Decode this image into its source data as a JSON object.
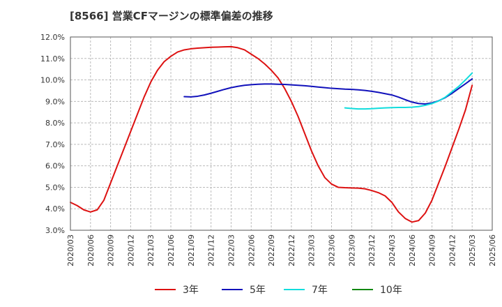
{
  "chart_data": {
    "type": "line",
    "title": "[8566]  営業CFマージンの標準偏差の推移",
    "xlabel": "",
    "ylabel": "",
    "ylim": [
      3.0,
      12.0
    ],
    "y_ticks": [
      "3.0%",
      "4.0%",
      "5.0%",
      "6.0%",
      "7.0%",
      "8.0%",
      "9.0%",
      "10.0%",
      "11.0%",
      "12.0%"
    ],
    "x_ticks": [
      "2020/03",
      "2020/06",
      "2020/09",
      "2020/12",
      "2021/03",
      "2021/06",
      "2021/09",
      "2021/12",
      "2022/03",
      "2022/06",
      "2022/09",
      "2022/12",
      "2023/03",
      "2023/06",
      "2023/09",
      "2023/12",
      "2024/03",
      "2024/06",
      "2024/09",
      "2024/12",
      "2025/03",
      "2025/06"
    ],
    "grid": true,
    "legend_position": "bottom",
    "series": [
      {
        "name": "3年",
        "color": "#dd1111",
        "points": [
          [
            "2020/03",
            4.3
          ],
          [
            "2020/04",
            4.15
          ],
          [
            "2020/05",
            3.95
          ],
          [
            "2020/06",
            3.85
          ],
          [
            "2020/07",
            3.95
          ],
          [
            "2020/08",
            4.4
          ],
          [
            "2020/09",
            5.2
          ],
          [
            "2020/10",
            6.0
          ],
          [
            "2020/11",
            6.8
          ],
          [
            "2020/12",
            7.6
          ],
          [
            "2021/01",
            8.4
          ],
          [
            "2021/02",
            9.2
          ],
          [
            "2021/03",
            9.9
          ],
          [
            "2021/04",
            10.45
          ],
          [
            "2021/05",
            10.85
          ],
          [
            "2021/06",
            11.1
          ],
          [
            "2021/07",
            11.3
          ],
          [
            "2021/08",
            11.4
          ],
          [
            "2021/09",
            11.45
          ],
          [
            "2021/10",
            11.48
          ],
          [
            "2021/11",
            11.5
          ],
          [
            "2021/12",
            11.52
          ],
          [
            "2022/01",
            11.53
          ],
          [
            "2022/02",
            11.54
          ],
          [
            "2022/03",
            11.55
          ],
          [
            "2022/04",
            11.5
          ],
          [
            "2022/05",
            11.4
          ],
          [
            "2022/06",
            11.2
          ],
          [
            "2022/07",
            11.0
          ],
          [
            "2022/08",
            10.75
          ],
          [
            "2022/09",
            10.45
          ],
          [
            "2022/10",
            10.1
          ],
          [
            "2022/11",
            9.6
          ],
          [
            "2022/12",
            9.0
          ],
          [
            "2023/01",
            8.3
          ],
          [
            "2023/02",
            7.5
          ],
          [
            "2023/03",
            6.7
          ],
          [
            "2023/04",
            6.0
          ],
          [
            "2023/05",
            5.45
          ],
          [
            "2023/06",
            5.15
          ],
          [
            "2023/07",
            5.0
          ],
          [
            "2023/08",
            4.98
          ],
          [
            "2023/09",
            4.97
          ],
          [
            "2023/10",
            4.96
          ],
          [
            "2023/11",
            4.93
          ],
          [
            "2023/12",
            4.85
          ],
          [
            "2024/01",
            4.75
          ],
          [
            "2024/02",
            4.6
          ],
          [
            "2024/03",
            4.3
          ],
          [
            "2024/04",
            3.85
          ],
          [
            "2024/05",
            3.55
          ],
          [
            "2024/06",
            3.38
          ],
          [
            "2024/07",
            3.45
          ],
          [
            "2024/08",
            3.8
          ],
          [
            "2024/09",
            4.4
          ],
          [
            "2024/10",
            5.2
          ],
          [
            "2024/11",
            6.0
          ],
          [
            "2024/12",
            6.85
          ],
          [
            "2025/01",
            7.7
          ],
          [
            "2025/02",
            8.6
          ],
          [
            "2025/03",
            9.75
          ]
        ]
      },
      {
        "name": "5年",
        "color": "#1111bb",
        "points": [
          [
            "2021/08",
            9.22
          ],
          [
            "2021/09",
            9.21
          ],
          [
            "2021/10",
            9.24
          ],
          [
            "2021/11",
            9.3
          ],
          [
            "2021/12",
            9.38
          ],
          [
            "2022/01",
            9.47
          ],
          [
            "2022/02",
            9.56
          ],
          [
            "2022/03",
            9.64
          ],
          [
            "2022/04",
            9.7
          ],
          [
            "2022/05",
            9.75
          ],
          [
            "2022/06",
            9.78
          ],
          [
            "2022/07",
            9.8
          ],
          [
            "2022/08",
            9.81
          ],
          [
            "2022/09",
            9.81
          ],
          [
            "2022/10",
            9.8
          ],
          [
            "2022/11",
            9.79
          ],
          [
            "2022/12",
            9.77
          ],
          [
            "2023/01",
            9.75
          ],
          [
            "2023/02",
            9.73
          ],
          [
            "2023/03",
            9.7
          ],
          [
            "2023/04",
            9.67
          ],
          [
            "2023/05",
            9.64
          ],
          [
            "2023/06",
            9.61
          ],
          [
            "2023/07",
            9.59
          ],
          [
            "2023/08",
            9.57
          ],
          [
            "2023/09",
            9.56
          ],
          [
            "2023/10",
            9.54
          ],
          [
            "2023/11",
            9.51
          ],
          [
            "2023/12",
            9.47
          ],
          [
            "2024/01",
            9.42
          ],
          [
            "2024/02",
            9.36
          ],
          [
            "2024/03",
            9.3
          ],
          [
            "2024/04",
            9.2
          ],
          [
            "2024/05",
            9.08
          ],
          [
            "2024/06",
            8.97
          ],
          [
            "2024/07",
            8.9
          ],
          [
            "2024/08",
            8.88
          ],
          [
            "2024/09",
            8.93
          ],
          [
            "2024/10",
            9.03
          ],
          [
            "2024/11",
            9.18
          ],
          [
            "2024/12",
            9.38
          ],
          [
            "2025/01",
            9.6
          ],
          [
            "2025/02",
            9.82
          ],
          [
            "2025/03",
            10.05
          ]
        ]
      },
      {
        "name": "7年",
        "color": "#11dddd",
        "points": [
          [
            "2023/08",
            8.7
          ],
          [
            "2023/09",
            8.67
          ],
          [
            "2023/10",
            8.65
          ],
          [
            "2023/11",
            8.65
          ],
          [
            "2023/12",
            8.66
          ],
          [
            "2024/01",
            8.68
          ],
          [
            "2024/02",
            8.7
          ],
          [
            "2024/03",
            8.71
          ],
          [
            "2024/04",
            8.72
          ],
          [
            "2024/05",
            8.72
          ],
          [
            "2024/06",
            8.73
          ],
          [
            "2024/07",
            8.76
          ],
          [
            "2024/08",
            8.82
          ],
          [
            "2024/09",
            8.9
          ],
          [
            "2024/10",
            9.02
          ],
          [
            "2024/11",
            9.2
          ],
          [
            "2024/12",
            9.45
          ],
          [
            "2025/01",
            9.7
          ],
          [
            "2025/02",
            10.0
          ],
          [
            "2025/03",
            10.32
          ]
        ]
      },
      {
        "name": "10年",
        "color": "#118811",
        "points": []
      }
    ]
  }
}
